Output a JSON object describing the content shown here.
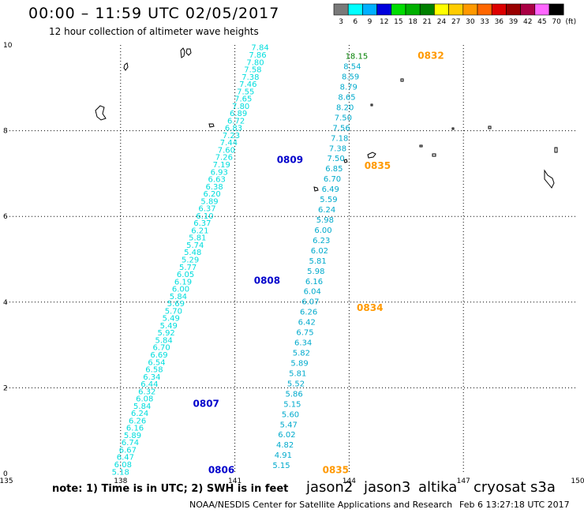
{
  "header": {
    "title": "00:00 – 11:59 UTC 02/05/2017",
    "subtitle": "12 hour collection of altimeter wave heights"
  },
  "colorbar": {
    "labels": [
      "3",
      "6",
      "9",
      "12",
      "15",
      "18",
      "21",
      "24",
      "27",
      "30",
      "33",
      "36",
      "39",
      "42",
      "45",
      "70",
      "(ft)"
    ],
    "colors": [
      "#7a7a7a",
      "#00ffff",
      "#00b0ff",
      "#0000dd",
      "#00dd00",
      "#00b000",
      "#008000",
      "#ffff00",
      "#ffcc00",
      "#ff9900",
      "#ff6600",
      "#dd0000",
      "#990000",
      "#aa0044",
      "#ff66ff",
      "#000000"
    ]
  },
  "footer": {
    "note": "note: 1) Time is in UTC; 2) SWH is in feet",
    "satellites": [
      {
        "name": "jason2",
        "color": "#0000cc"
      },
      {
        "name": "jason3",
        "color": "#009900"
      },
      {
        "name": "altika",
        "color": "#ff9900"
      },
      {
        "name": "cryosat",
        "color": "#cc0000"
      },
      {
        "name": "s3a",
        "color": "#880000"
      }
    ],
    "credit": "NOAA/NESDIS Center for Satellite Applications and Research",
    "timestamp": "Feb  6 13:27:18 UTC 2017"
  },
  "chart_data": {
    "type": "scatter",
    "title": "00:00 – 11:59 UTC 02/05/2017",
    "subtitle": "12 hour collection of altimeter wave heights",
    "xlabel": "",
    "ylabel": "",
    "xlim": [
      135,
      150
    ],
    "ylim": [
      0,
      10
    ],
    "x_ticks": [
      135,
      138,
      141,
      144,
      147,
      150
    ],
    "y_ticks": [
      0,
      2,
      4,
      6,
      8,
      10
    ],
    "grid": true,
    "track_a_values": [
      "5.18",
      "6.08",
      "6.47",
      "6.67",
      "6.74",
      "5.89",
      "6.16",
      "6.26",
      "6.24",
      "5.84",
      "6.08",
      "6.32",
      "6.44",
      "6.34",
      "6.58",
      "6.54",
      "6.69",
      "6.70",
      "5.84",
      "5.92",
      "5.49",
      "5.49",
      "5.70",
      "5.69",
      "5.84",
      "6.00",
      "6.19",
      "6.05",
      "5.77",
      "5.29",
      "5.48",
      "5.74",
      "5.81",
      "6.21",
      "6.37",
      "6.10",
      "6.37",
      "5.89",
      "6.20",
      "6.38",
      "6.63",
      "6.93",
      "7.19",
      "7.26",
      "7.60",
      "7.44",
      "7.23",
      "6.83",
      "6.72",
      "6.89",
      "7.80",
      "7.65",
      "7.55",
      "7.46",
      "7.38",
      "7.58",
      "7.80",
      "7.86",
      "7.84"
    ],
    "track_b_values": [
      "5.15",
      "4.91",
      "4.82",
      "6.02",
      "5.47",
      "5.60",
      "5.15",
      "5.86",
      "5.52",
      "5.81",
      "5.89",
      "5.82",
      "6.34",
      "6.75",
      "6.42",
      "6.26",
      "6.07",
      "6.04",
      "6.16",
      "5.98",
      "5.81",
      "6.02",
      "6.23",
      "6.00",
      "5.98",
      "6.24",
      "5.59",
      "6.49",
      "6.70",
      "6.85",
      "7.50",
      "7.38",
      "7.18",
      "7.56",
      "7.50",
      "8.20",
      "8.65",
      "8.79",
      "8.59",
      "8.54",
      "18.15"
    ],
    "time_labels_jason2": [
      {
        "time": "0806",
        "lon": 140.3,
        "lat": 0.08
      },
      {
        "time": "0807",
        "lon": 139.9,
        "lat": 1.63
      },
      {
        "time": "0808",
        "lon": 141.5,
        "lat": 4.5
      },
      {
        "time": "0809",
        "lon": 142.1,
        "lat": 7.32
      }
    ],
    "time_labels_altika": [
      {
        "time": "0832",
        "lon": 145.8,
        "lat": 9.75
      },
      {
        "time": "0835",
        "lon": 144.4,
        "lat": 7.18
      },
      {
        "time": "0834",
        "lon": 144.2,
        "lat": 3.87
      },
      {
        "time": "0835",
        "lon": 143.3,
        "lat": 0.08
      }
    ]
  }
}
